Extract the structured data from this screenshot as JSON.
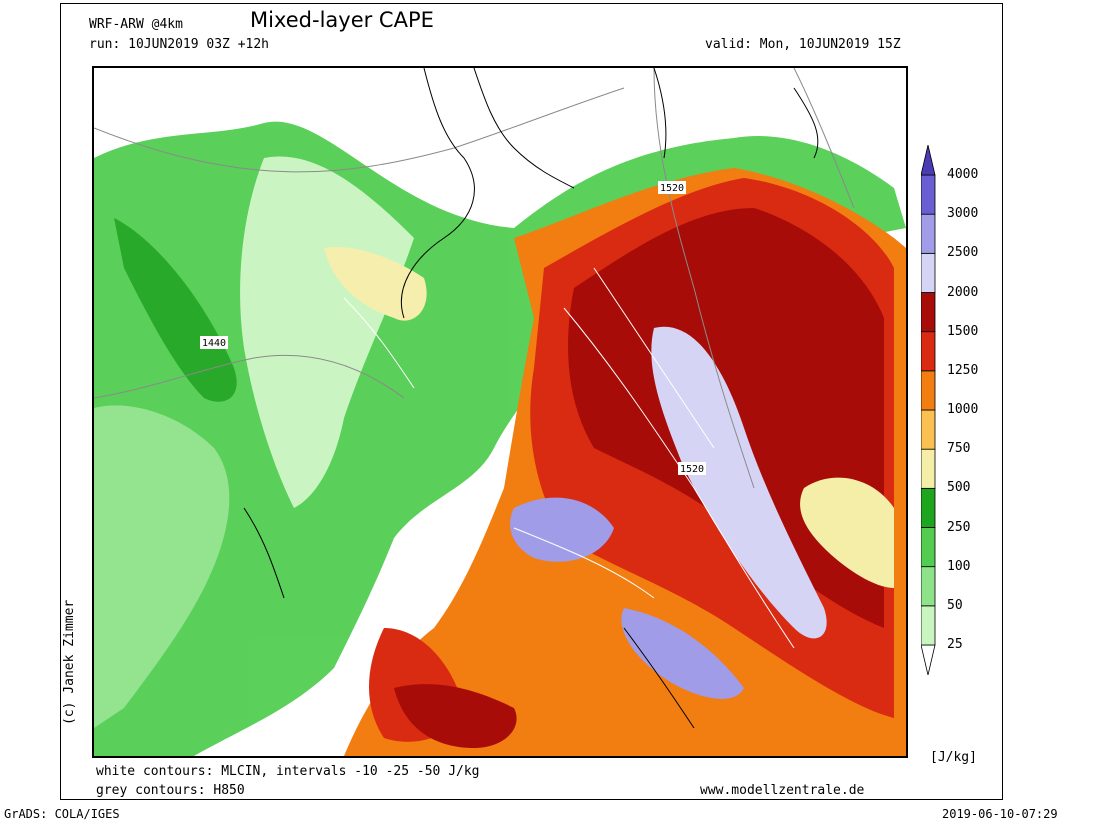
{
  "header": {
    "model": "WRF-ARW @4km",
    "title": "Mixed-layer CAPE",
    "run": "run: 10JUN2019 03Z +12h",
    "valid": "valid: Mon, 10JUN2019 15Z"
  },
  "map": {
    "contour_labels": [
      "1440",
      "1520",
      "1520"
    ]
  },
  "legend": {
    "unit": "[J/kg]",
    "levels": [
      "25",
      "50",
      "100",
      "250",
      "500",
      "750",
      "1000",
      "1250",
      "1500",
      "2000",
      "2500",
      "3000",
      "4000"
    ],
    "colors": [
      "#ffffff",
      "#c8f5c0",
      "#8ee28a",
      "#52cd52",
      "#1ea51e",
      "#f5eea8",
      "#fbc052",
      "#f27d10",
      "#d92a12",
      "#a80c08",
      "#d6d4f5",
      "#a19ce8",
      "#6a5ed2",
      "#4a3cb4"
    ]
  },
  "footer": {
    "note_white": "white contours: MLCIN, intervals -10 -25 -50 J/kg",
    "note_grey": "grey contours: H850",
    "website": "www.modellzentrale.de",
    "credit": "(c) Janek Zimmer",
    "grads": "GrADS: COLA/IGES",
    "timestamp": "2019-06-10-07:29"
  }
}
